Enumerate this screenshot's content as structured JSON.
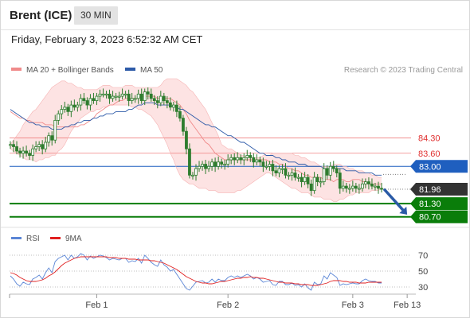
{
  "header": {
    "instrument": "Brent (ICE)",
    "interval": "30 MIN"
  },
  "datetime": "Friday, February 3, 2023 6:52:32 AM CET",
  "copyright": "Research © 2023 Trading Central",
  "colors": {
    "bollinger": "#f08a8a",
    "band_fill": "#fde3e3",
    "ma50": "#2d5aa8",
    "candle": "#2e7d2e",
    "resistance": "#f08080",
    "pivot": "#1f5fbf",
    "support": "#0a7d0a",
    "last": "#333333",
    "rsi": "#5b86d6",
    "rsi_ma": "#e02020",
    "arrow": "#2a5aa6"
  },
  "legend": [
    {
      "label": "MA 20 + Bollinger Bands",
      "color": "#f08a8a"
    },
    {
      "label": "MA 50",
      "color": "#2d5aa8"
    }
  ],
  "chart_data": [
    {
      "type": "line",
      "title": "",
      "x_tick_labels": [
        "Feb 1",
        "Feb 2",
        "Feb 3",
        "Feb 13"
      ],
      "price_levels": [
        {
          "label": "84.30",
          "value": 84.3,
          "kind": "resistance"
        },
        {
          "label": "83.60",
          "value": 83.6,
          "kind": "resistance"
        },
        {
          "label": "83.00",
          "value": 83.0,
          "kind": "pivot"
        },
        {
          "label": "81.96",
          "value": 81.96,
          "kind": "last"
        },
        {
          "label": "81.30",
          "value": 81.3,
          "kind": "support"
        },
        {
          "label": "80.70",
          "value": 80.7,
          "kind": "support"
        }
      ],
      "ylim": [
        80.4,
        87.0
      ],
      "x_domain": [
        0,
        116
      ],
      "x_ticks": [
        27,
        68,
        107,
        124
      ],
      "candle_close": [
        84.0,
        83.9,
        83.7,
        83.6,
        83.7,
        83.6,
        83.5,
        83.8,
        83.9,
        84.0,
        83.8,
        84.1,
        84.4,
        84.2,
        85.1,
        85.4,
        85.6,
        85.7,
        85.5,
        85.8,
        85.7,
        85.8,
        86.1,
        86.0,
        85.8,
        86.1,
        86.0,
        86.2,
        86.3,
        86.3,
        86.3,
        86.1,
        86.2,
        86.2,
        86.2,
        86.3,
        86.3,
        86.0,
        86.1,
        86.1,
        86.3,
        86.0,
        86.4,
        86.3,
        86.1,
        86.0,
        85.9,
        86.2,
        86.0,
        85.9,
        85.7,
        85.8,
        85.5,
        85.2,
        84.6,
        83.8,
        82.6,
        82.6,
        82.9,
        83.0,
        83.1,
        82.9,
        83.0,
        83.2,
        83.0,
        83.2,
        83.1,
        83.1,
        83.3,
        83.4,
        83.3,
        83.4,
        83.3,
        83.4,
        83.5,
        83.4,
        83.2,
        83.3,
        83.2,
        83.0,
        83.0,
        83.1,
        82.8,
        82.7,
        82.9,
        82.9,
        82.6,
        82.6,
        82.7,
        82.5,
        82.5,
        82.3,
        82.5,
        82.2,
        81.9,
        82.5,
        82.3,
        82.3,
        82.9,
        82.6,
        83.0,
        82.9,
        82.7,
        82.0,
        82.1,
        82.0,
        82.0,
        82.1,
        82.0,
        82.0,
        82.2,
        82.3,
        82.2,
        82.1,
        82.1,
        82.0,
        81.96
      ],
      "ma20": [
        85.5,
        85.4,
        85.3,
        85.2,
        85.2,
        85.1,
        85.1,
        85.0,
        85.0,
        85.0,
        85.0,
        84.9,
        84.9,
        84.9,
        84.8,
        84.8,
        84.8,
        84.8,
        84.8,
        84.8,
        84.8,
        84.8,
        84.9,
        84.9,
        85.0,
        85.1,
        85.2,
        85.4,
        85.5,
        85.6,
        85.7,
        85.8,
        85.8,
        85.9,
        86.0,
        86.0,
        86.1,
        86.1,
        86.1,
        86.1,
        86.1,
        86.2,
        86.2,
        86.2,
        86.2,
        86.2,
        86.1,
        86.1,
        86.1,
        86.1,
        86.1,
        86.0,
        85.9,
        85.8,
        85.6,
        85.4,
        85.1,
        84.9,
        84.7,
        84.5,
        84.3,
        84.1,
        84.0,
        83.8,
        83.6,
        83.5,
        83.4,
        83.3,
        83.3,
        83.3,
        83.3,
        83.3,
        83.3,
        83.3,
        83.3,
        83.3,
        83.3,
        83.3,
        83.3,
        83.3,
        83.3,
        83.2,
        83.2,
        83.2,
        83.1,
        83.1,
        83.0,
        82.9,
        82.9,
        82.8,
        82.8,
        82.7,
        82.6,
        82.6,
        82.5,
        82.5,
        82.5,
        82.5,
        82.4,
        82.4,
        82.4,
        82.3,
        82.4,
        82.4,
        82.4,
        82.3,
        82.3,
        82.4,
        82.4,
        82.4,
        82.3,
        82.3,
        82.2,
        82.2,
        82.2,
        82.2,
        82.2
      ],
      "bb_upper": [
        84.0,
        84.2,
        84.4,
        84.6,
        84.9,
        85.1,
        85.3,
        85.5,
        85.6,
        85.8,
        86.0,
        86.2,
        86.4,
        86.6,
        86.7,
        86.8,
        86.9,
        86.9,
        86.8,
        86.8,
        86.7,
        86.6,
        86.6,
        86.5,
        86.5,
        86.5,
        86.5,
        86.5,
        86.6,
        86.7,
        86.7,
        86.7,
        86.6,
        86.6,
        86.6,
        86.6,
        86.7,
        86.7,
        86.7,
        86.6,
        86.6,
        86.6,
        86.6,
        86.6,
        86.6,
        86.6,
        86.6,
        86.7,
        86.9,
        87.0,
        87.0,
        87.0,
        87.0,
        86.9,
        86.8,
        86.7,
        86.5,
        86.4,
        86.2,
        86.0,
        85.8,
        85.6,
        85.3,
        85.0,
        84.7,
        84.4,
        84.0,
        83.9,
        83.8,
        83.8,
        83.7,
        83.6,
        83.5,
        83.5,
        83.4,
        83.4,
        83.4,
        83.4,
        83.4,
        83.5,
        83.5,
        83.5,
        83.6,
        83.6,
        83.6,
        83.6,
        83.6,
        83.6,
        83.6,
        83.5,
        83.5,
        83.4,
        83.4,
        83.3,
        83.2,
        83.2,
        83.1,
        83.0,
        83.0,
        83.0,
        83.0,
        83.1,
        83.1,
        83.1,
        83.0,
        83.0,
        82.9,
        82.9,
        82.8,
        82.8,
        82.8,
        82.7,
        82.7,
        82.6,
        82.6,
        82.5,
        82.5
      ],
      "bb_lower": [
        83.8,
        83.7,
        83.6,
        83.5,
        83.4,
        83.3,
        83.3,
        83.3,
        83.2,
        83.3,
        83.3,
        83.4,
        83.4,
        83.5,
        83.5,
        83.7,
        83.8,
        84.0,
        84.3,
        84.6,
        84.8,
        85.0,
        85.2,
        85.3,
        85.4,
        85.5,
        85.5,
        85.6,
        85.6,
        85.7,
        85.7,
        85.8,
        85.8,
        85.8,
        85.8,
        85.8,
        85.8,
        85.8,
        85.7,
        85.7,
        85.6,
        85.6,
        85.5,
        85.4,
        85.3,
        85.1,
        84.9,
        84.6,
        84.3,
        84.0,
        83.6,
        83.3,
        82.9,
        82.6,
        82.4,
        82.3,
        82.2,
        82.2,
        82.1,
        82.0,
        82.0,
        82.0,
        81.9,
        81.9,
        81.9,
        81.8,
        81.8,
        81.8,
        81.8,
        81.8,
        81.8,
        81.9,
        81.9,
        82.0,
        82.1,
        82.2,
        82.3,
        82.4,
        82.5,
        82.6,
        82.7,
        82.7,
        82.6,
        82.5,
        82.4,
        82.3,
        82.2,
        82.1,
        82.0,
        82.0,
        81.9,
        81.8,
        81.8,
        81.8,
        81.7,
        81.6,
        81.6,
        81.6,
        81.5,
        81.5,
        81.5,
        81.4,
        81.4,
        81.5,
        81.5,
        81.6,
        81.7,
        81.7,
        81.8,
        81.8,
        81.8,
        81.8,
        81.8,
        81.9,
        81.9,
        81.9,
        82.0
      ],
      "ma50": [
        85.6,
        85.5,
        85.4,
        85.3,
        85.2,
        85.1,
        85.0,
        85.0,
        84.9,
        84.9,
        84.8,
        84.8,
        84.8,
        84.7,
        84.7,
        84.7,
        84.7,
        84.8,
        84.8,
        84.9,
        84.9,
        85.0,
        85.0,
        85.1,
        85.1,
        85.1,
        85.2,
        85.2,
        85.3,
        85.3,
        85.4,
        85.4,
        85.4,
        85.5,
        85.5,
        85.5,
        85.5,
        85.6,
        85.6,
        85.7,
        85.8,
        85.8,
        85.9,
        85.9,
        85.9,
        85.9,
        85.8,
        85.8,
        85.8,
        85.8,
        85.8,
        85.7,
        85.7,
        85.6,
        85.6,
        85.5,
        85.4,
        85.3,
        85.2,
        85.1,
        85.0,
        84.9,
        84.9,
        84.8,
        84.8,
        84.7,
        84.6,
        84.5,
        84.4,
        84.4,
        84.3,
        84.2,
        84.1,
        84.1,
        84.0,
        83.9,
        83.8,
        83.7,
        83.6,
        83.6,
        83.5,
        83.5,
        83.5,
        83.4,
        83.4,
        83.3,
        83.3,
        83.2,
        83.2,
        83.2,
        83.1,
        83.1,
        83.1,
        83.0,
        83.0,
        83.0,
        83.0,
        83.0,
        82.9,
        82.9,
        82.9,
        82.9,
        82.9,
        82.9,
        82.9,
        82.8,
        82.8,
        82.8,
        82.8,
        82.7,
        82.7,
        82.7,
        82.7,
        82.7,
        82.6,
        82.6,
        82.6
      ],
      "forecast_arrow": {
        "from": [
          116,
          82.0
        ],
        "to": [
          124,
          80.8
        ]
      },
      "legend_position": "top-left"
    },
    {
      "type": "line",
      "title": "",
      "ylim": [
        20,
        80
      ],
      "y_ticks": [
        30,
        50,
        70
      ],
      "y_tick_labels": [
        "30",
        "50",
        "70"
      ],
      "x_domain": [
        0,
        116
      ],
      "legend": [
        {
          "label": "RSI",
          "color": "#5b86d6"
        },
        {
          "label": "9MA",
          "color": "#e02020"
        }
      ],
      "series": [
        {
          "name": "RSI",
          "values": [
            44,
            40,
            34,
            31,
            36,
            34,
            33,
            40,
            42,
            45,
            40,
            48,
            54,
            48,
            62,
            66,
            68,
            70,
            64,
            70,
            66,
            68,
            72,
            70,
            64,
            69,
            66,
            68,
            70,
            69,
            67,
            64,
            66,
            65,
            64,
            66,
            66,
            61,
            63,
            62,
            66,
            60,
            70,
            66,
            61,
            58,
            56,
            64,
            58,
            55,
            50,
            52,
            46,
            40,
            34,
            28,
            26,
            31,
            36,
            37,
            38,
            35,
            36,
            40,
            36,
            40,
            38,
            38,
            42,
            44,
            42,
            44,
            42,
            44,
            46,
            44,
            40,
            42,
            40,
            36,
            37,
            38,
            33,
            32,
            37,
            37,
            33,
            33,
            35,
            32,
            33,
            30,
            34,
            29,
            26,
            36,
            33,
            34,
            44,
            40,
            48,
            45,
            42,
            32,
            34,
            33,
            34,
            35,
            34,
            34,
            38,
            40,
            38,
            37,
            37,
            35,
            35
          ]
        },
        {
          "name": "9MA",
          "values": [
            48,
            47,
            45,
            42,
            40,
            38,
            37,
            37,
            37,
            38,
            39,
            41,
            44,
            46,
            49,
            53,
            57,
            60,
            62,
            64,
            66,
            67,
            68,
            68,
            68,
            68,
            68,
            68,
            68,
            68,
            68,
            67,
            67,
            67,
            66,
            66,
            66,
            65,
            65,
            65,
            64,
            64,
            64,
            64,
            63,
            63,
            62,
            61,
            60,
            58,
            56,
            54,
            52,
            49,
            46,
            43,
            41,
            39,
            37,
            36,
            35,
            35,
            34,
            34,
            35,
            36,
            37,
            37,
            38,
            39,
            40,
            41,
            41,
            42,
            42,
            43,
            42,
            42,
            41,
            41,
            40,
            39,
            38,
            37,
            36,
            36,
            35,
            35,
            35,
            34,
            34,
            33,
            33,
            33,
            32,
            32,
            32,
            33,
            34,
            35,
            37,
            38,
            38,
            38,
            37,
            37,
            36,
            36,
            36,
            35,
            35,
            35,
            36,
            36,
            36,
            36,
            36
          ]
        }
      ]
    }
  ]
}
